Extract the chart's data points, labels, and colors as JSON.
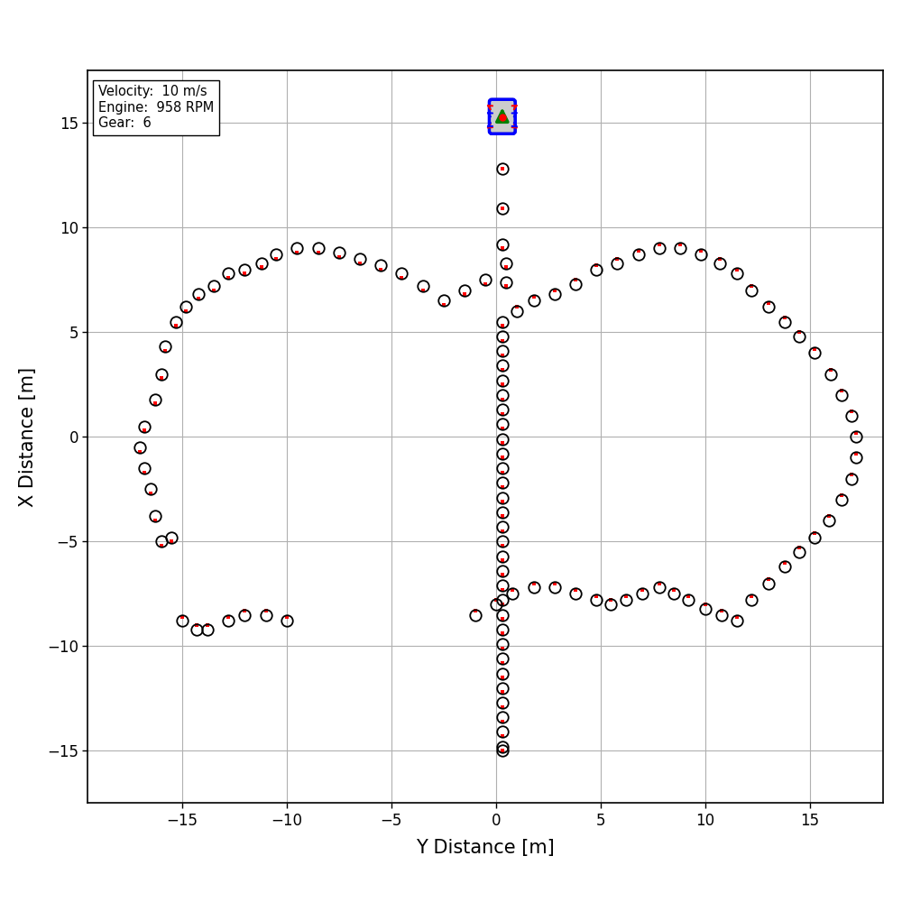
{
  "xlabel": "Y Distance [m]",
  "ylabel": "X Distance [m]",
  "xlim": [
    -19.5,
    18.5
  ],
  "ylim": [
    -17.5,
    17.5
  ],
  "xticks": [
    -15,
    -10,
    -5,
    0,
    5,
    10,
    15
  ],
  "yticks": [
    -15,
    -10,
    -5,
    0,
    5,
    10,
    15
  ],
  "annotation_text": "Velocity:  10 m/s\nEngine:  958 RPM\nGear:  6",
  "vehicle_pos_y": 0.3,
  "vehicle_pos_x": 15.3,
  "circles_xy": [
    [
      0.3,
      12.8
    ],
    [
      0.3,
      10.9
    ],
    [
      0.3,
      9.2
    ],
    [
      0.5,
      8.3
    ],
    [
      0.5,
      7.4
    ],
    [
      -0.5,
      7.5
    ],
    [
      -1.5,
      7.0
    ],
    [
      -2.5,
      6.5
    ],
    [
      -3.5,
      7.2
    ],
    [
      -4.5,
      7.8
    ],
    [
      -5.5,
      8.2
    ],
    [
      -6.5,
      8.5
    ],
    [
      -7.5,
      8.8
    ],
    [
      -8.5,
      9.0
    ],
    [
      -9.5,
      9.0
    ],
    [
      -10.5,
      8.7
    ],
    [
      -11.2,
      8.3
    ],
    [
      -12.0,
      8.0
    ],
    [
      -12.8,
      7.8
    ],
    [
      -13.5,
      7.2
    ],
    [
      -14.2,
      6.8
    ],
    [
      -14.8,
      6.2
    ],
    [
      -15.3,
      5.5
    ],
    [
      -15.8,
      4.3
    ],
    [
      -16.0,
      3.0
    ],
    [
      -16.3,
      1.8
    ],
    [
      -16.8,
      0.5
    ],
    [
      -17.0,
      -0.5
    ],
    [
      -16.8,
      -1.5
    ],
    [
      -16.5,
      -2.5
    ],
    [
      -16.3,
      -3.8
    ],
    [
      -16.0,
      -5.0
    ],
    [
      -15.5,
      -4.8
    ],
    [
      -15.0,
      -8.8
    ],
    [
      -14.3,
      -9.2
    ],
    [
      -13.8,
      -9.2
    ],
    [
      -12.8,
      -8.8
    ],
    [
      -12.0,
      -8.5
    ],
    [
      -11.0,
      -8.5
    ],
    [
      -10.0,
      -8.8
    ],
    [
      -1.0,
      -8.5
    ],
    [
      0.0,
      -8.0
    ],
    [
      0.8,
      -7.5
    ],
    [
      1.8,
      -7.2
    ],
    [
      2.8,
      -7.2
    ],
    [
      3.8,
      -7.5
    ],
    [
      4.8,
      -7.8
    ],
    [
      5.5,
      -8.0
    ],
    [
      6.2,
      -7.8
    ],
    [
      7.0,
      -7.5
    ],
    [
      7.8,
      -7.2
    ],
    [
      8.5,
      -7.5
    ],
    [
      9.2,
      -7.8
    ],
    [
      10.0,
      -8.2
    ],
    [
      10.8,
      -8.5
    ],
    [
      11.5,
      -8.8
    ],
    [
      12.2,
      -7.8
    ],
    [
      13.0,
      -7.0
    ],
    [
      13.8,
      -6.2
    ],
    [
      14.5,
      -5.5
    ],
    [
      15.2,
      -4.8
    ],
    [
      15.9,
      -4.0
    ],
    [
      16.5,
      -3.0
    ],
    [
      17.0,
      -2.0
    ],
    [
      17.2,
      -1.0
    ],
    [
      17.2,
      0.0
    ],
    [
      17.0,
      1.0
    ],
    [
      16.5,
      2.0
    ],
    [
      16.0,
      3.0
    ],
    [
      15.2,
      4.0
    ],
    [
      14.5,
      4.8
    ],
    [
      13.8,
      5.5
    ],
    [
      13.0,
      6.2
    ],
    [
      12.2,
      7.0
    ],
    [
      11.5,
      7.8
    ],
    [
      10.7,
      8.3
    ],
    [
      9.8,
      8.7
    ],
    [
      8.8,
      9.0
    ],
    [
      7.8,
      9.0
    ],
    [
      6.8,
      8.7
    ],
    [
      5.8,
      8.3
    ],
    [
      4.8,
      8.0
    ],
    [
      3.8,
      7.3
    ],
    [
      2.8,
      6.8
    ],
    [
      1.8,
      6.5
    ],
    [
      1.0,
      6.0
    ],
    [
      0.3,
      5.5
    ],
    [
      0.3,
      4.8
    ],
    [
      0.3,
      4.1
    ],
    [
      0.3,
      3.4
    ],
    [
      0.3,
      2.7
    ],
    [
      0.3,
      2.0
    ],
    [
      0.3,
      1.3
    ],
    [
      0.3,
      0.6
    ],
    [
      0.3,
      -0.1
    ],
    [
      0.3,
      -0.8
    ],
    [
      0.3,
      -1.5
    ],
    [
      0.3,
      -2.2
    ],
    [
      0.3,
      -2.9
    ],
    [
      0.3,
      -3.6
    ],
    [
      0.3,
      -4.3
    ],
    [
      0.3,
      -5.0
    ],
    [
      0.3,
      -5.7
    ],
    [
      0.3,
      -6.4
    ],
    [
      0.3,
      -7.1
    ],
    [
      0.3,
      -7.8
    ],
    [
      0.3,
      -8.5
    ],
    [
      0.3,
      -9.2
    ],
    [
      0.3,
      -9.9
    ],
    [
      0.3,
      -10.6
    ],
    [
      0.3,
      -11.3
    ],
    [
      0.3,
      -12.0
    ],
    [
      0.3,
      -12.7
    ],
    [
      0.3,
      -13.4
    ],
    [
      0.3,
      -14.1
    ],
    [
      0.3,
      -14.8
    ],
    [
      0.3,
      -15.0
    ]
  ],
  "red_dots_xy": [
    [
      0.3,
      12.8
    ],
    [
      0.3,
      10.9
    ],
    [
      0.3,
      9.0
    ],
    [
      0.5,
      8.1
    ],
    [
      0.5,
      7.2
    ],
    [
      -0.5,
      7.3
    ],
    [
      -1.5,
      6.8
    ],
    [
      -2.5,
      6.3
    ],
    [
      -3.5,
      7.0
    ],
    [
      -4.5,
      7.6
    ],
    [
      -5.5,
      8.0
    ],
    [
      -6.5,
      8.3
    ],
    [
      -7.5,
      8.6
    ],
    [
      -8.5,
      8.8
    ],
    [
      -9.5,
      8.8
    ],
    [
      -10.5,
      8.5
    ],
    [
      -11.2,
      8.1
    ],
    [
      -12.0,
      7.8
    ],
    [
      -12.8,
      7.6
    ],
    [
      -13.5,
      7.0
    ],
    [
      -14.2,
      6.6
    ],
    [
      -14.8,
      6.0
    ],
    [
      -15.3,
      5.3
    ],
    [
      -15.8,
      4.1
    ],
    [
      -16.0,
      2.8
    ],
    [
      -16.3,
      1.6
    ],
    [
      -16.8,
      0.3
    ],
    [
      -17.0,
      -0.7
    ],
    [
      -16.8,
      -1.7
    ],
    [
      -16.5,
      -2.7
    ],
    [
      -16.3,
      -4.0
    ],
    [
      -16.0,
      -5.2
    ],
    [
      -15.5,
      -5.0
    ],
    [
      -15.0,
      -8.6
    ],
    [
      -14.3,
      -9.0
    ],
    [
      -13.8,
      -9.0
    ],
    [
      -12.8,
      -8.6
    ],
    [
      -12.0,
      -8.3
    ],
    [
      -11.0,
      -8.3
    ],
    [
      -10.0,
      -8.6
    ],
    [
      -1.0,
      -8.3
    ],
    [
      0.0,
      -7.8
    ],
    [
      0.8,
      -7.3
    ],
    [
      1.8,
      -7.0
    ],
    [
      2.8,
      -7.0
    ],
    [
      3.8,
      -7.3
    ],
    [
      4.8,
      -7.6
    ],
    [
      5.5,
      -7.8
    ],
    [
      6.2,
      -7.6
    ],
    [
      7.0,
      -7.3
    ],
    [
      7.8,
      -7.0
    ],
    [
      8.5,
      -7.3
    ],
    [
      9.2,
      -7.6
    ],
    [
      10.0,
      -8.0
    ],
    [
      10.8,
      -8.3
    ],
    [
      11.5,
      -8.6
    ],
    [
      12.2,
      -7.6
    ],
    [
      13.0,
      -6.8
    ],
    [
      13.8,
      -6.0
    ],
    [
      14.5,
      -5.3
    ],
    [
      15.2,
      -4.6
    ],
    [
      15.9,
      -3.8
    ],
    [
      16.5,
      -2.8
    ],
    [
      17.0,
      -1.8
    ],
    [
      17.2,
      -0.8
    ],
    [
      17.2,
      0.2
    ],
    [
      17.0,
      1.2
    ],
    [
      16.5,
      2.2
    ],
    [
      16.0,
      3.2
    ],
    [
      15.2,
      4.2
    ],
    [
      14.5,
      5.0
    ],
    [
      13.8,
      5.7
    ],
    [
      13.0,
      6.4
    ],
    [
      12.2,
      7.2
    ],
    [
      11.5,
      8.0
    ],
    [
      10.7,
      8.5
    ],
    [
      9.8,
      8.9
    ],
    [
      8.8,
      9.2
    ],
    [
      7.8,
      9.2
    ],
    [
      6.8,
      8.9
    ],
    [
      5.8,
      8.5
    ],
    [
      4.8,
      8.2
    ],
    [
      3.8,
      7.5
    ],
    [
      2.8,
      7.0
    ],
    [
      1.8,
      6.7
    ],
    [
      1.0,
      6.2
    ],
    [
      0.3,
      5.3
    ],
    [
      0.3,
      4.6
    ],
    [
      0.3,
      3.9
    ],
    [
      0.3,
      3.2
    ],
    [
      0.3,
      2.5
    ],
    [
      0.3,
      1.8
    ],
    [
      0.3,
      1.1
    ],
    [
      0.3,
      0.4
    ],
    [
      0.3,
      -0.3
    ],
    [
      0.3,
      -1.0
    ],
    [
      0.3,
      -1.7
    ],
    [
      0.3,
      -2.4
    ],
    [
      0.3,
      -3.1
    ],
    [
      0.3,
      -3.8
    ],
    [
      0.3,
      -4.5
    ],
    [
      0.3,
      -5.2
    ],
    [
      0.3,
      -5.9
    ],
    [
      0.3,
      -6.6
    ],
    [
      0.3,
      -7.3
    ],
    [
      0.3,
      -8.0
    ],
    [
      0.3,
      -8.7
    ],
    [
      0.3,
      -9.4
    ],
    [
      0.3,
      -10.1
    ],
    [
      0.3,
      -10.8
    ],
    [
      0.3,
      -11.5
    ],
    [
      0.3,
      -12.2
    ],
    [
      0.3,
      -12.9
    ],
    [
      0.3,
      -13.6
    ],
    [
      0.3,
      -14.3
    ],
    [
      0.3,
      -15.0
    ]
  ]
}
